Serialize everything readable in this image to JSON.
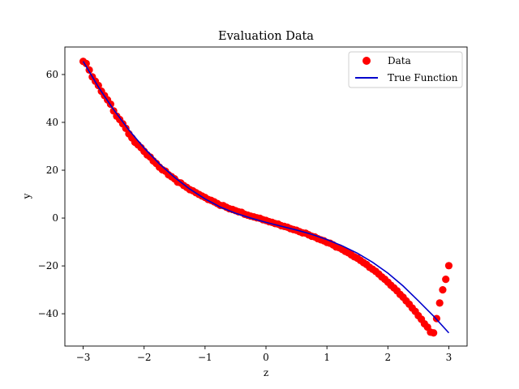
{
  "chart_data": {
    "type": "scatter",
    "title": "Evaluation Data",
    "xlabel": "z",
    "ylabel": "y",
    "xlim": [
      -3.3,
      3.3
    ],
    "ylim": [
      -53.5,
      71.5
    ],
    "xticks": [
      -3,
      -2,
      -1,
      0,
      1,
      2,
      3
    ],
    "xtick_labels": [
      "−3",
      "−2",
      "−1",
      "0",
      "1",
      "2",
      "3"
    ],
    "yticks": [
      -40,
      -20,
      0,
      20,
      40,
      60
    ],
    "ytick_labels": [
      "−40",
      "−20",
      "0",
      "20",
      "40",
      "60"
    ],
    "grid": false,
    "legend_position": "top-right",
    "colors": {
      "data": "#ff0000",
      "true_function": "#0000cc"
    },
    "series": [
      {
        "name": "Data",
        "kind": "scatter",
        "x": [
          -3.0,
          -2.95,
          -2.9,
          -2.85,
          -2.8,
          -2.75,
          -2.7,
          -2.65,
          -2.6,
          -2.55,
          -2.5,
          -2.45,
          -2.4,
          -2.35,
          -2.3,
          -2.25,
          -2.2,
          -2.15,
          -2.1,
          -2.05,
          -2.0,
          -1.95,
          -1.9,
          -1.85,
          -1.8,
          -1.75,
          -1.7,
          -1.65,
          -1.6,
          -1.55,
          -1.5,
          -1.45,
          -1.4,
          -1.35,
          -1.3,
          -1.25,
          -1.2,
          -1.15,
          -1.1,
          -1.05,
          -1.0,
          -0.95,
          -0.9,
          -0.85,
          -0.8,
          -0.75,
          -0.7,
          -0.65,
          -0.6,
          -0.55,
          -0.5,
          -0.45,
          -0.4,
          -0.35,
          -0.3,
          -0.25,
          -0.2,
          -0.15,
          -0.1,
          -0.05,
          0.0,
          0.05,
          0.1,
          0.15,
          0.2,
          0.25,
          0.3,
          0.35,
          0.4,
          0.45,
          0.5,
          0.55,
          0.6,
          0.65,
          0.7,
          0.75,
          0.8,
          0.85,
          0.9,
          0.95,
          1.0,
          1.05,
          1.1,
          1.15,
          1.2,
          1.25,
          1.3,
          1.35,
          1.4,
          1.45,
          1.5,
          1.55,
          1.6,
          1.65,
          1.7,
          1.75,
          1.8,
          1.85,
          1.9,
          1.95,
          2.0,
          2.05,
          2.1,
          2.15,
          2.2,
          2.25,
          2.3,
          2.35,
          2.4,
          2.45,
          2.5,
          2.55,
          2.6,
          2.65,
          2.7,
          2.75,
          2.8,
          2.85,
          2.9,
          2.95,
          3.0
        ],
        "y": [
          65.5,
          64.6,
          61.9,
          59.0,
          57.2,
          55.4,
          53.0,
          51.2,
          49.4,
          47.6,
          44.8,
          42.6,
          41.2,
          39.4,
          37.5,
          35.2,
          33.5,
          31.7,
          30.6,
          29.4,
          27.9,
          26.4,
          25.5,
          23.9,
          22.8,
          21.3,
          20.2,
          19.6,
          18.1,
          17.3,
          16.4,
          15.0,
          14.7,
          13.6,
          12.8,
          11.9,
          11.4,
          10.6,
          9.9,
          9.2,
          8.6,
          7.8,
          7.4,
          6.8,
          6.1,
          5.3,
          5.2,
          4.5,
          3.9,
          3.6,
          3.1,
          2.6,
          2.4,
          1.6,
          1.2,
          0.8,
          0.5,
          0.1,
          -0.1,
          -0.7,
          -1.0,
          -1.5,
          -1.8,
          -2.3,
          -2.5,
          -3.2,
          -3.5,
          -3.8,
          -4.4,
          -4.8,
          -5.1,
          -5.7,
          -6.2,
          -6.3,
          -7.0,
          -7.6,
          -7.9,
          -8.6,
          -9.1,
          -9.5,
          -10.2,
          -10.5,
          -11.2,
          -12.1,
          -12.4,
          -13.1,
          -13.9,
          -14.5,
          -15.4,
          -16.2,
          -16.8,
          -17.7,
          -18.6,
          -19.4,
          -20.6,
          -21.4,
          -22.3,
          -23.4,
          -24.6,
          -25.6,
          -26.8,
          -28.1,
          -29.2,
          -30.4,
          -31.9,
          -33.1,
          -34.6,
          -36.0,
          -37.6,
          -39.0,
          -40.8,
          -42.3,
          -44.2,
          -45.6,
          -47.7,
          -48.0,
          -42.0,
          -35.5,
          -30.0,
          -25.6,
          -19.9
        ]
      },
      {
        "name": "True Function",
        "kind": "line",
        "x": [
          -3.0,
          -2.75,
          -2.5,
          -2.25,
          -2.0,
          -1.75,
          -1.5,
          -1.25,
          -1.0,
          -0.75,
          -0.5,
          -0.25,
          0.0,
          0.25,
          0.5,
          0.75,
          1.0,
          1.25,
          1.5,
          1.75,
          2.0,
          2.25,
          2.5,
          2.75,
          3.0
        ],
        "y": [
          65.5,
          54.8,
          45.3,
          36.8,
          29.3,
          22.7,
          17.0,
          12.1,
          8.0,
          4.6,
          2.0,
          0.0,
          -1.8,
          -3.4,
          -5.0,
          -6.8,
          -9.0,
          -11.6,
          -14.7,
          -18.5,
          -23.0,
          -28.4,
          -34.6,
          -41.0,
          -48.0
        ]
      }
    ]
  }
}
